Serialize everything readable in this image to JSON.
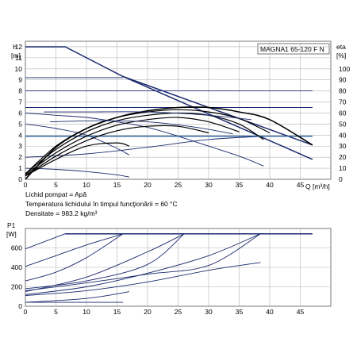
{
  "model_label": "MAGNA1 65-120 F N",
  "info_lines": [
    "Lichid pompat = Apă",
    "Temperatura lichidului în timpul funcţionării = 60 °C",
    "Densitate = 983.2 kg/m³"
  ],
  "chart_data": [
    {
      "type": "line",
      "panel": "head-efficiency",
      "xlabel": "Q [m³/h]",
      "ylabel_line1": "H",
      "ylabel_line2": "[m]",
      "y2label_line1": "eta",
      "y2label_line2": "[%]",
      "xlim": [
        0,
        50
      ],
      "ylim": [
        0,
        12.5
      ],
      "y2lim": [
        0,
        125
      ],
      "x_ticks": [
        0,
        5,
        10,
        15,
        20,
        25,
        30,
        35,
        40,
        45
      ],
      "y_ticks": [
        0,
        1,
        2,
        3,
        4,
        5,
        6,
        7,
        8,
        9,
        10,
        11,
        12
      ],
      "y2_ticks": [
        0,
        10,
        20,
        30,
        40,
        50,
        60,
        70,
        80,
        90,
        100
      ],
      "grid": true,
      "series": [
        {
          "style": "max",
          "x": [
            0,
            6.5,
            16,
            47
          ],
          "y": [
            12,
            12,
            9.3,
            3.1
          ]
        },
        {
          "style": "max",
          "x": [
            16,
            47
          ],
          "y": [
            9.3,
            1.8
          ]
        },
        {
          "style": "thin",
          "x": [
            0,
            16
          ],
          "y": [
            9.2,
            9.2
          ]
        },
        {
          "style": "thin",
          "x": [
            0,
            5,
            10,
            15,
            20,
            25,
            30,
            35,
            39
          ],
          "y": [
            6.0,
            5.8,
            5.6,
            5.2,
            4.7,
            3.9,
            3.0,
            2.1,
            1.2
          ]
        },
        {
          "style": "thin",
          "x": [
            0,
            5,
            10,
            15,
            17
          ],
          "y": [
            5.0,
            4.6,
            4.0,
            2.8,
            2.2
          ]
        },
        {
          "style": "thin",
          "x": [
            0,
            5,
            10,
            15,
            17
          ],
          "y": [
            1.0,
            0.9,
            0.7,
            0.4,
            0.2
          ]
        },
        {
          "style": "thin",
          "x": [
            0,
            10,
            20,
            30,
            39
          ],
          "y": [
            2.0,
            2.3,
            2.9,
            3.6,
            3.9
          ]
        },
        {
          "style": "ref",
          "x": [
            0,
            47
          ],
          "y": [
            3.9,
            3.9
          ]
        },
        {
          "style": "thin",
          "x": [
            0,
            47
          ],
          "y": [
            6.5,
            6.5
          ]
        },
        {
          "style": "thin",
          "x": [
            0,
            47
          ],
          "y": [
            8.0,
            8.0
          ]
        },
        {
          "style": "heavy",
          "x": [
            0,
            5,
            10,
            15,
            20,
            25,
            30,
            35,
            40,
            47
          ],
          "y": [
            0,
            2.9,
            4.6,
            5.6,
            6.2,
            6.5,
            6.5,
            6.1,
            5.4,
            3.1
          ]
        },
        {
          "style": "eta",
          "x": [
            0,
            5,
            10,
            15,
            20,
            25,
            30,
            35,
            40
          ],
          "y": [
            0.5,
            3.0,
            4.6,
            5.6,
            6.1,
            6.3,
            6.1,
            5.5,
            4.2
          ]
        },
        {
          "style": "eta",
          "x": [
            0,
            5,
            10,
            15,
            20,
            25,
            30,
            35,
            39
          ],
          "y": [
            0.5,
            2.7,
            4.3,
            5.3,
            5.8,
            6.0,
            5.8,
            5.0,
            3.6
          ]
        },
        {
          "style": "eta",
          "x": [
            0,
            5,
            10,
            15,
            20,
            25,
            30,
            35
          ],
          "y": [
            0.4,
            2.4,
            3.9,
            4.9,
            5.4,
            5.6,
            5.2,
            4.3
          ]
        },
        {
          "style": "eta",
          "x": [
            0,
            5,
            10,
            15,
            20,
            25,
            30
          ],
          "y": [
            0.3,
            2.1,
            3.5,
            4.4,
            4.8,
            4.8,
            4.2
          ]
        },
        {
          "style": "eta",
          "x": [
            0,
            5,
            10,
            15,
            17
          ],
          "y": [
            0.3,
            1.8,
            3.0,
            3.3,
            3.0
          ]
        },
        {
          "style": "thin",
          "x": [
            3,
            10,
            20,
            30,
            37
          ],
          "y": [
            6.1,
            6.1,
            6.1,
            5.8,
            5.4
          ]
        },
        {
          "style": "thin",
          "x": [
            4,
            12,
            20,
            28,
            34
          ],
          "y": [
            5.2,
            5.3,
            5.2,
            4.7,
            4.1
          ]
        }
      ]
    },
    {
      "type": "line",
      "panel": "power",
      "ylabel_line1": "P1",
      "ylabel_line2": "[W]",
      "xlim": [
        0,
        50
      ],
      "ylim": [
        0,
        800
      ],
      "y_ticks": [
        0,
        200,
        400,
        600
      ],
      "x_ticks": [
        0,
        5,
        10,
        15,
        20,
        25,
        30,
        35,
        40,
        45
      ],
      "grid": true,
      "series": [
        {
          "style": "max",
          "x": [
            6.5,
            47
          ],
          "y": [
            745,
            745
          ]
        },
        {
          "style": "thin",
          "x": [
            0,
            6.5
          ],
          "y": [
            590,
            745
          ]
        },
        {
          "style": "thin",
          "x": [
            0,
            5,
            10,
            16
          ],
          "y": [
            410,
            520,
            630,
            745
          ]
        },
        {
          "style": "thin",
          "x": [
            0,
            5,
            10,
            16
          ],
          "y": [
            260,
            350,
            500,
            745
          ]
        },
        {
          "style": "thin",
          "x": [
            0,
            10,
            20,
            26
          ],
          "y": [
            150,
            300,
            560,
            745
          ]
        },
        {
          "style": "thin",
          "x": [
            0,
            10,
            20,
            26
          ],
          "y": [
            180,
            260,
            430,
            745
          ]
        },
        {
          "style": "thin",
          "x": [
            0,
            10,
            20,
            30,
            38.5
          ],
          "y": [
            120,
            200,
            340,
            520,
            745
          ]
        },
        {
          "style": "thin",
          "x": [
            0,
            10,
            20,
            30,
            38.5
          ],
          "y": [
            160,
            240,
            330,
            420,
            745
          ]
        },
        {
          "style": "thin",
          "x": [
            0,
            10,
            20,
            30,
            38.5
          ],
          "y": [
            110,
            160,
            250,
            370,
            450
          ]
        },
        {
          "style": "thin",
          "x": [
            0,
            10,
            17
          ],
          "y": [
            40,
            80,
            150
          ]
        },
        {
          "style": "thin",
          "x": [
            0,
            16
          ],
          "y": [
            40,
            40
          ]
        }
      ]
    }
  ]
}
